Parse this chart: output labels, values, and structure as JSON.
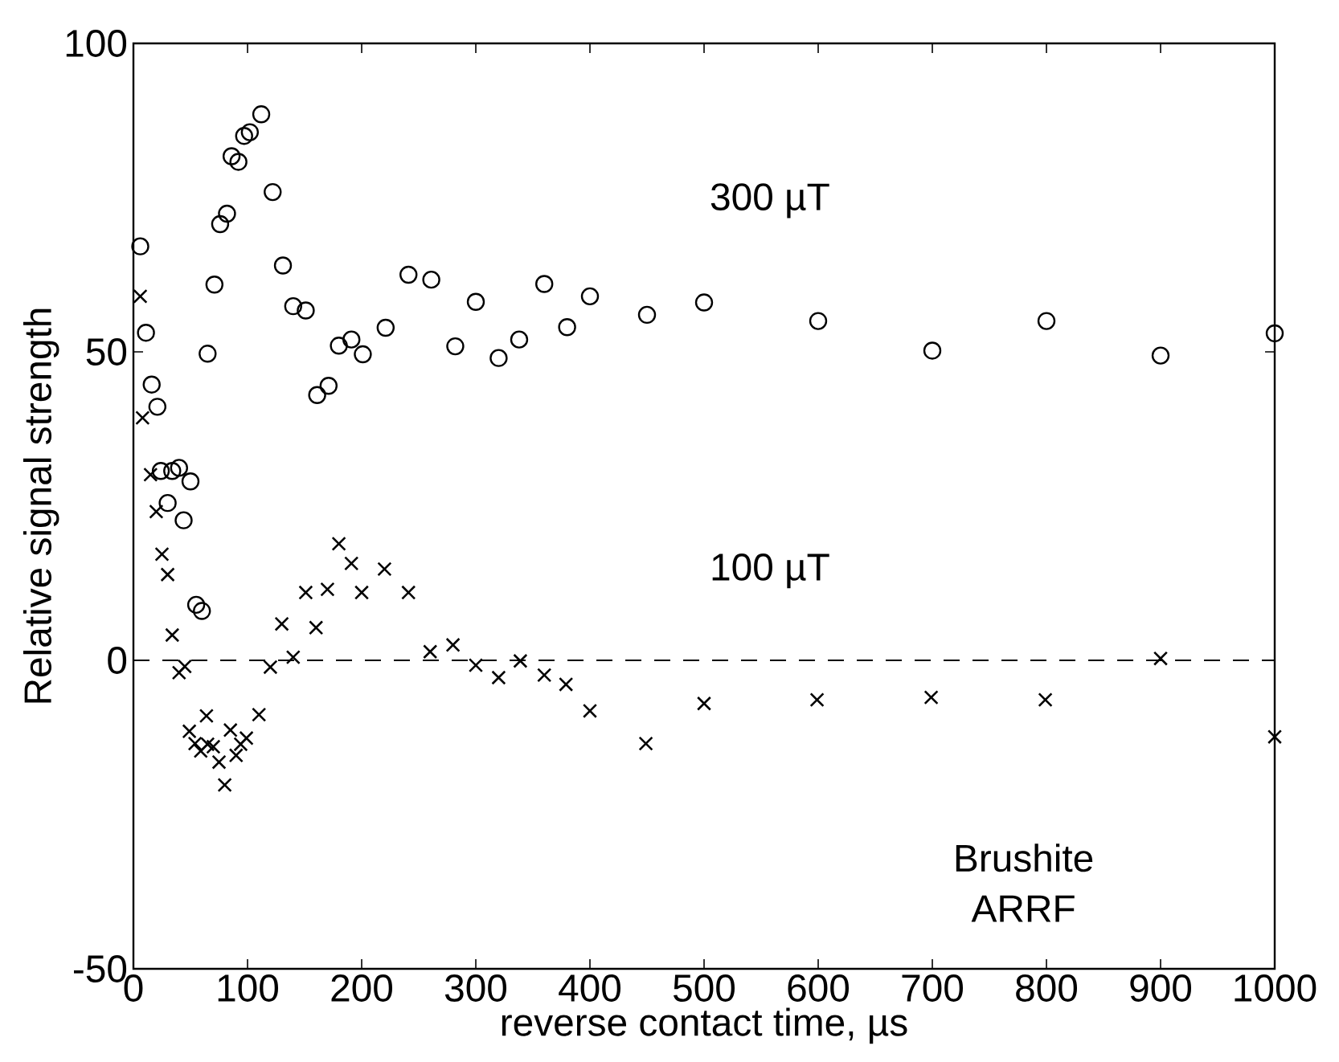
{
  "chart_data": {
    "type": "scatter",
    "xlabel": "reverse contact time, µs",
    "ylabel": "Relative signal strength",
    "xlim": [
      0,
      1000
    ],
    "ylim": [
      -50,
      100
    ],
    "xticks": [
      0,
      100,
      200,
      300,
      400,
      500,
      600,
      700,
      800,
      900,
      1000
    ],
    "yticks": [
      -50,
      0,
      50,
      100
    ],
    "grid": false,
    "legend": false,
    "series": [
      {
        "name": "300 µT",
        "color": "#000000",
        "marker": "circle",
        "x": [
          6,
          11,
          16,
          21,
          24,
          30,
          34,
          40,
          44,
          50,
          55,
          60,
          65,
          71,
          76,
          82,
          86,
          92,
          97,
          102,
          112,
          122,
          131,
          140,
          151,
          161,
          171,
          180,
          191,
          201,
          221,
          241,
          261,
          282,
          300,
          320,
          338,
          360,
          380,
          400,
          450,
          500,
          600,
          700,
          800,
          900,
          1000
        ],
        "values": [
          67.1,
          53.1,
          44.7,
          41.1,
          30.7,
          25.5,
          30.7,
          31.2,
          22.7,
          29.0,
          9,
          8,
          49.7,
          60.9,
          70.7,
          72.4,
          81.7,
          80.8,
          85.0,
          85.6,
          88.5,
          75.9,
          64.0,
          57.4,
          56.7,
          43.0,
          44.5,
          51.0,
          52.0,
          49.6,
          53.9,
          62.5,
          61.7,
          50.9,
          58.1,
          49.0,
          52,
          61,
          54,
          59,
          56,
          58,
          55,
          50.2,
          55,
          49.4,
          53
        ]
      },
      {
        "name": "100 µT",
        "color": "#000000",
        "marker": "cross",
        "x": [
          6,
          8,
          15,
          20,
          25,
          30,
          34,
          40,
          45,
          49,
          54,
          59,
          64,
          65,
          70,
          75,
          80,
          85,
          90,
          94,
          99,
          110,
          120,
          130,
          140,
          151,
          160,
          170,
          180,
          191,
          200,
          220,
          241,
          260,
          280,
          300,
          320,
          339,
          360,
          379,
          400,
          449,
          500,
          599,
          699,
          799,
          900,
          1000
        ],
        "values": [
          59.0,
          39.3,
          30.1,
          24.1,
          17.2,
          13.9,
          4.1,
          -2,
          -1,
          -11.5,
          -13.5,
          -14.7,
          -9.0,
          -13.6,
          -14,
          -16.5,
          -20.2,
          -11.3,
          -15.4,
          -13.6,
          -12.6,
          -8.8,
          -1.1,
          5.9,
          0.5,
          11.0,
          5.3,
          11.5,
          18.9,
          15.7,
          11,
          14.8,
          11,
          1.4,
          2.5,
          -0.8,
          -2.8,
          -0.1,
          -2.4,
          -3.9,
          -8.2,
          -13.5,
          -7.0,
          -6.4,
          -6.0,
          -6.4,
          0.3,
          -12.4
        ]
      }
    ],
    "ref_lines": [
      {
        "axis": "y",
        "value": 0,
        "color": "#000000",
        "line_style": "dashed"
      }
    ],
    "annotations": [
      "Brushite",
      "ARRF"
    ]
  }
}
